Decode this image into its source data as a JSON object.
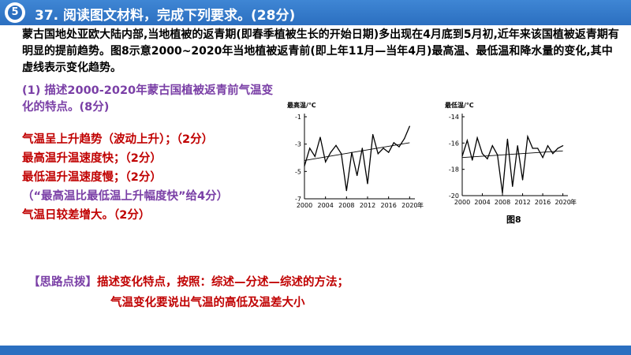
{
  "header": {
    "logo_glyph": "5",
    "title": "37. 阅读图文材料，完成下列要求。(28分)"
  },
  "intro": "蒙古国地处亚欧大陆内部,当地植被的返青期(即春季植被生长的开始日期)多出现在4月底到5月初,近年来该国植被返青期有明显的提前趋势。图8示意2000~2020年当地植被返青前(即上年11月—当年4月)最高温、最低温和降水量的变化,其中虚线表示变化趋势。",
  "question1": "(1) 描述2000-2020年蒙古国植被返青前气温变化的特点。(8分)",
  "answers": [
    "气温呈上升趋势（波动上升）；（2分）",
    "最高温升温速度快；（2分）",
    "最低温升温速度慢；（2分）",
    "（“最高温比最低温上升幅度快”给4分）",
    "气温日较差增大。（2分）"
  ],
  "tips": {
    "label": "【思路点拨】",
    "line1": "描述变化特点，按照：综述—分述—综述的方法；",
    "line2": "气温变化要说出气温的高低及温差大小"
  },
  "figure_label": "图8",
  "chart_data": [
    {
      "type": "line",
      "ylabel": "最高温/℃",
      "xlabel": "年",
      "xticks": [
        2000,
        2004,
        2008,
        2012,
        2016,
        2020
      ],
      "yticks": [
        -1,
        -3,
        -5,
        -7
      ],
      "xlim": [
        2000,
        2021
      ],
      "ylim": [
        -7,
        -1
      ],
      "x": [
        2000,
        2001,
        2002,
        2003,
        2004,
        2005,
        2006,
        2007,
        2008,
        2009,
        2010,
        2011,
        2012,
        2013,
        2014,
        2015,
        2016,
        2017,
        2018,
        2019,
        2020
      ],
      "values": [
        -4.6,
        -3.3,
        -3.9,
        -2.5,
        -4.3,
        -3.6,
        -3.1,
        -3.7,
        -6.4,
        -3.6,
        -5.3,
        -3.3,
        -5.9,
        -2.3,
        -3.7,
        -3.3,
        -3.6,
        -2.9,
        -3.2,
        -2.6,
        -1.7
      ],
      "trend": [
        -4.2,
        -2.9
      ]
    },
    {
      "type": "line",
      "ylabel": "最低温/℃",
      "xlabel": "年",
      "xticks": [
        2000,
        2004,
        2008,
        2012,
        2016,
        2020
      ],
      "yticks": [
        -14,
        -16,
        -18,
        -20
      ],
      "xlim": [
        2000,
        2021
      ],
      "ylim": [
        -20,
        -14
      ],
      "x": [
        2000,
        2001,
        2002,
        2003,
        2004,
        2005,
        2006,
        2007,
        2008,
        2009,
        2010,
        2011,
        2012,
        2013,
        2014,
        2015,
        2016,
        2017,
        2018,
        2019,
        2020
      ],
      "values": [
        -17.0,
        -15.8,
        -17.3,
        -15.6,
        -16.8,
        -17.2,
        -16.2,
        -16.9,
        -19.8,
        -15.7,
        -19.3,
        -16.2,
        -18.8,
        -15.5,
        -16.4,
        -16.4,
        -17.1,
        -16.2,
        -16.8,
        -16.4,
        -16.2
      ],
      "trend": [
        -17.1,
        -16.6
      ]
    }
  ]
}
